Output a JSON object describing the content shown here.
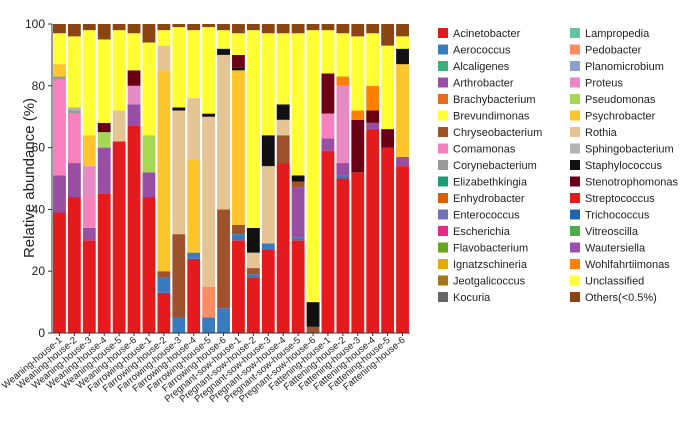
{
  "chart_data": {
    "type": "stacked-bar",
    "ylabel": "Relative abundance (%)",
    "xlabel": "",
    "ylim": [
      0,
      100
    ],
    "yticks": [
      0,
      20,
      40,
      60,
      80,
      100
    ],
    "grid": false,
    "legend_position": "right",
    "categories": [
      "Weaning-house-1",
      "Weaning-house-2",
      "Weaning-house-3",
      "Weaning-house-4",
      "Weaning-house-5",
      "Weaning-house-6",
      "Farrowing-house-1",
      "Farrowing-house-2",
      "Farrowing-house-3",
      "Farrowing-house-4",
      "Farrowing-house-5",
      "Farrowing-house-6",
      "Pregnant-sow-house-1",
      "Pregnant-sow-house-2",
      "Pregnant-sow-house-3",
      "Pregnant-sow-house-4",
      "Pregnant-sow-house-5",
      "Pregnant-sow-house-6",
      "Fattening-house-1",
      "Fattening-house-2",
      "Fattening-house-3",
      "Fattening-house-4",
      "Fattening-house-5",
      "Fattening-house-6"
    ],
    "series": [
      {
        "name": "Acinetobacter",
        "color": "#e41a1c",
        "values": [
          39,
          44,
          30,
          45,
          62,
          67,
          44,
          13,
          0,
          24,
          0,
          0,
          30,
          18,
          27,
          55,
          30,
          0,
          59,
          50,
          52,
          66,
          60,
          54
        ]
      },
      {
        "name": "Aerococcus",
        "color": "#3a7bbf",
        "values": [
          0,
          0,
          0,
          0,
          0,
          0,
          0,
          5,
          5,
          2,
          5,
          8,
          2,
          1,
          2,
          0,
          1,
          0,
          0,
          1,
          0,
          0,
          0,
          0
        ]
      },
      {
        "name": "Alcaligenes",
        "color": "#3cb07a",
        "values": [
          0,
          0,
          0,
          0,
          0,
          0,
          0,
          0,
          0,
          0,
          0,
          0,
          0,
          0,
          0,
          0,
          0,
          0,
          0,
          0,
          0,
          0,
          0,
          0
        ]
      },
      {
        "name": "Arthrobacter",
        "color": "#984ea3",
        "values": [
          12,
          11,
          4,
          15,
          0,
          7,
          8,
          0,
          0,
          0,
          0,
          0,
          0,
          0,
          0,
          0,
          16,
          0,
          4,
          4,
          0,
          2,
          0,
          3
        ]
      },
      {
        "name": "Brachybacterium",
        "color": "#e56b1f",
        "values": [
          0,
          0,
          0,
          0,
          0,
          0,
          0,
          0,
          0,
          0,
          0,
          0,
          0,
          0,
          0,
          0,
          0,
          0,
          0,
          0,
          0,
          0,
          0,
          0
        ]
      },
      {
        "name": "Brevundimonas",
        "color": "#ffff33",
        "values": [
          0,
          0,
          0,
          0,
          0,
          0,
          0,
          0,
          0,
          0,
          0,
          0,
          0,
          0,
          0,
          0,
          0,
          0,
          0,
          0,
          0,
          0,
          0,
          0
        ]
      },
      {
        "name": "Chryseobacterium",
        "color": "#a0522d",
        "values": [
          0,
          0,
          0,
          0,
          0,
          0,
          0,
          2,
          27,
          0,
          0,
          32,
          3,
          2,
          0,
          9,
          2,
          2,
          0,
          0,
          0,
          0,
          0,
          0
        ]
      },
      {
        "name": "Comamonas",
        "color": "#f781bf",
        "values": [
          31,
          16,
          10,
          0,
          0,
          0,
          0,
          0,
          0,
          0,
          0,
          0,
          0,
          0,
          0,
          0,
          0,
          0,
          8,
          0,
          0,
          0,
          0,
          0
        ]
      },
      {
        "name": "Corynebacterium",
        "color": "#999999",
        "values": [
          1,
          1,
          0,
          0,
          0,
          0,
          0,
          0,
          0,
          0,
          0,
          0,
          0,
          0,
          0,
          0,
          0,
          0,
          0,
          0,
          0,
          0,
          0,
          0
        ]
      },
      {
        "name": "Elizabethkingia",
        "color": "#1b9e77",
        "values": [
          0,
          0,
          0,
          0,
          0,
          0,
          0,
          0,
          0,
          0,
          0,
          0,
          0,
          0,
          0,
          0,
          0,
          0,
          0,
          0,
          0,
          0,
          0,
          0
        ]
      },
      {
        "name": "Enhydrobacter",
        "color": "#d95f02",
        "values": [
          0,
          0,
          0,
          0,
          0,
          0,
          0,
          0,
          0,
          0,
          0,
          0,
          0,
          0,
          0,
          0,
          0,
          0,
          0,
          0,
          0,
          0,
          0,
          0
        ]
      },
      {
        "name": "Enterococcus",
        "color": "#7570b3",
        "values": [
          0,
          0,
          0,
          0,
          0,
          0,
          0,
          0,
          0,
          0,
          0,
          0,
          0,
          0,
          0,
          0,
          0,
          0,
          0,
          0,
          0,
          0,
          0,
          0
        ]
      },
      {
        "name": "Escherichia",
        "color": "#e7298a",
        "values": [
          0,
          0,
          0,
          0,
          0,
          0,
          0,
          0,
          0,
          0,
          0,
          0,
          0,
          0,
          0,
          0,
          0,
          0,
          0,
          0,
          0,
          0,
          0,
          0
        ]
      },
      {
        "name": "Flavobacterium",
        "color": "#66a61e",
        "values": [
          0,
          0,
          0,
          0,
          0,
          0,
          0,
          0,
          0,
          0,
          0,
          0,
          0,
          0,
          0,
          0,
          0,
          0,
          0,
          0,
          0,
          0,
          0,
          0
        ]
      },
      {
        "name": "Ignatzschineria",
        "color": "#e6ab02",
        "values": [
          0,
          0,
          0,
          0,
          0,
          0,
          0,
          0,
          0,
          0,
          0,
          0,
          0,
          0,
          0,
          0,
          0,
          0,
          0,
          0,
          0,
          0,
          0,
          0
        ]
      },
      {
        "name": "Jeotgalicoccus",
        "color": "#a6761d",
        "values": [
          0,
          0,
          0,
          0,
          0,
          0,
          0,
          0,
          0,
          0,
          0,
          0,
          0,
          0,
          0,
          0,
          0,
          0,
          0,
          0,
          0,
          0,
          0,
          0
        ]
      },
      {
        "name": "Kocuria",
        "color": "#666666",
        "values": [
          0,
          0,
          0,
          0,
          0,
          0,
          0,
          0,
          0,
          0,
          0,
          0,
          0,
          0,
          0,
          0,
          0,
          0,
          0,
          0,
          0,
          0,
          0,
          0
        ]
      },
      {
        "name": "Lampropedia",
        "color": "#66c2a5",
        "values": [
          0,
          0,
          0,
          0,
          0,
          0,
          0,
          0,
          0,
          0,
          0,
          0,
          0,
          0,
          0,
          0,
          0,
          0,
          0,
          0,
          0,
          0,
          0,
          0
        ]
      },
      {
        "name": "Pedobacter",
        "color": "#fc8d62",
        "values": [
          0,
          0,
          0,
          0,
          0,
          0,
          0,
          0,
          0,
          0,
          10,
          0,
          0,
          0,
          0,
          0,
          0,
          0,
          0,
          0,
          0,
          0,
          0,
          0
        ]
      },
      {
        "name": "Planomicrobium",
        "color": "#8da0cb",
        "values": [
          0,
          0,
          0,
          0,
          0,
          0,
          0,
          0,
          0,
          0,
          0,
          0,
          0,
          0,
          0,
          0,
          0,
          0,
          0,
          0,
          0,
          0,
          0,
          0
        ]
      },
      {
        "name": "Proteus",
        "color": "#e78ac3",
        "values": [
          0,
          0,
          10,
          0,
          0,
          6,
          0,
          0,
          0,
          0,
          0,
          0,
          0,
          0,
          0,
          0,
          0,
          0,
          0,
          25,
          0,
          0,
          0,
          0
        ]
      },
      {
        "name": "Pseudomonas",
        "color": "#a6d854",
        "values": [
          0,
          0,
          0,
          5,
          0,
          0,
          12,
          0,
          0,
          0,
          0,
          0,
          0,
          0,
          0,
          0,
          0,
          0,
          0,
          0,
          0,
          0,
          0,
          0
        ]
      },
      {
        "name": "Psychrobacter",
        "color": "#fdc42c",
        "values": [
          4,
          0,
          10,
          0,
          0,
          0,
          0,
          65,
          0,
          30,
          0,
          0,
          50,
          0,
          0,
          0,
          0,
          0,
          0,
          0,
          0,
          0,
          0,
          30
        ]
      },
      {
        "name": "Rothia",
        "color": "#e5c494",
        "values": [
          0,
          0,
          0,
          0,
          10,
          0,
          0,
          8,
          40,
          20,
          55,
          50,
          0,
          5,
          25,
          5,
          0,
          0,
          0,
          0,
          0,
          0,
          0,
          0
        ]
      },
      {
        "name": "Sphingobacterium",
        "color": "#b3b3b3",
        "values": [
          0,
          1,
          0,
          0,
          0,
          0,
          0,
          0,
          0,
          0,
          0,
          0,
          0,
          0,
          0,
          0,
          0,
          0,
          0,
          0,
          0,
          0,
          0,
          0
        ]
      },
      {
        "name": "Staphylococcus",
        "color": "#111111",
        "values": [
          0,
          0,
          0,
          0,
          0,
          0,
          0,
          0,
          1,
          0,
          1,
          2,
          1,
          8,
          10,
          5,
          2,
          8,
          0,
          0,
          0,
          0,
          0,
          5
        ]
      },
      {
        "name": "Stenotrophomonas",
        "color": "#6b0014",
        "values": [
          0,
          0,
          0,
          3,
          0,
          5,
          0,
          0,
          0,
          0,
          0,
          0,
          4,
          0,
          0,
          0,
          0,
          0,
          13,
          0,
          17,
          4,
          6,
          0
        ]
      },
      {
        "name": "Streptococcus",
        "color": "#e31a1c",
        "values": [
          0,
          0,
          0,
          0,
          0,
          0,
          0,
          0,
          0,
          0,
          0,
          0,
          0,
          0,
          0,
          0,
          0,
          0,
          0,
          0,
          0,
          0,
          0,
          0
        ]
      },
      {
        "name": "Trichococcus",
        "color": "#2166ac",
        "values": [
          0,
          0,
          0,
          0,
          0,
          0,
          0,
          0,
          0,
          0,
          0,
          0,
          0,
          0,
          0,
          0,
          0,
          0,
          0,
          0,
          0,
          0,
          0,
          0
        ]
      },
      {
        "name": "Vitreoscilla",
        "color": "#4daf4a",
        "values": [
          0,
          0,
          0,
          0,
          0,
          0,
          0,
          0,
          0,
          0,
          0,
          0,
          0,
          0,
          0,
          0,
          0,
          0,
          0,
          0,
          0,
          0,
          0,
          0
        ]
      },
      {
        "name": "Wautersiella",
        "color": "#9c4fb0",
        "values": [
          0,
          0,
          0,
          0,
          0,
          0,
          0,
          0,
          0,
          0,
          0,
          0,
          0,
          0,
          0,
          0,
          0,
          0,
          0,
          0,
          0,
          0,
          0,
          0
        ]
      },
      {
        "name": "Wohlfahrtiimonas",
        "color": "#ff7f00",
        "values": [
          0,
          0,
          0,
          0,
          0,
          0,
          0,
          0,
          0,
          0,
          0,
          0,
          0,
          0,
          0,
          0,
          0,
          0,
          0,
          3,
          3,
          8,
          0,
          0
        ]
      },
      {
        "name": "Unclassified",
        "color": "#ffff33",
        "values": [
          10,
          23,
          34,
          27,
          26,
          12,
          30,
          5,
          26,
          22,
          28,
          6,
          7,
          64,
          33,
          23,
          46,
          88,
          14,
          14,
          24,
          17,
          27,
          4
        ]
      },
      {
        "name": "Others(<0.5%)",
        "color": "#8b4513",
        "values": [
          3,
          4,
          2,
          5,
          2,
          3,
          6,
          2,
          1,
          2,
          1,
          2,
          3,
          2,
          3,
          3,
          3,
          2,
          2,
          3,
          4,
          3,
          7,
          4
        ]
      }
    ]
  }
}
